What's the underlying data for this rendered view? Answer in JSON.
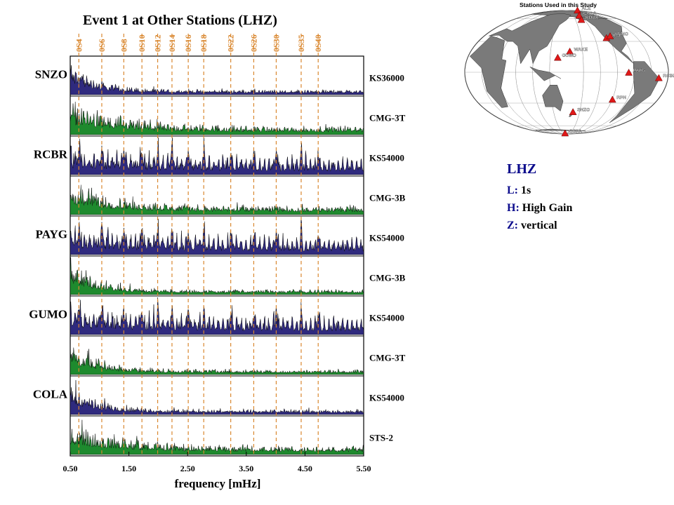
{
  "chart_data": {
    "type": "area",
    "title": "Event 1 at Other Stations (LHZ)",
    "xlabel": "frequency [mHz]",
    "xlim": [
      0.5,
      5.5
    ],
    "x_ticks": [
      "0.50",
      "1.50",
      "2.50",
      "3.50",
      "4.50",
      "5.50"
    ],
    "mode_labels": [
      "0S4",
      "0S6",
      "0S8",
      "0S10",
      "0S12",
      "0S14",
      "0S16",
      "0S18",
      "0S22",
      "0S26",
      "0S30",
      "0S35",
      "0S40"
    ],
    "mode_freqs": [
      0.647,
      1.038,
      1.413,
      1.722,
      1.99,
      2.234,
      2.511,
      2.775,
      3.235,
      3.627,
      4.01,
      4.435,
      4.725
    ],
    "stations": [
      {
        "name": "SNZO",
        "traces": [
          {
            "instrument": "KS36000",
            "color": "#2f2a7e",
            "profile": "low"
          },
          {
            "instrument": "CMG-3T",
            "color": "#1e8a2e",
            "profile": "mid"
          }
        ]
      },
      {
        "name": "RCBR",
        "traces": [
          {
            "instrument": "KS54000",
            "color": "#2f2a7e",
            "profile": "peaky"
          },
          {
            "instrument": "CMG-3B",
            "color": "#1e8a2e",
            "profile": "mid"
          }
        ]
      },
      {
        "name": "PAYG",
        "traces": [
          {
            "instrument": "KS54000",
            "color": "#2f2a7e",
            "profile": "peaky"
          },
          {
            "instrument": "CMG-3B",
            "color": "#1e8a2e",
            "profile": "low"
          }
        ]
      },
      {
        "name": "GUMO",
        "traces": [
          {
            "instrument": "KS54000",
            "color": "#2f2a7e",
            "profile": "peaky"
          },
          {
            "instrument": "CMG-3T",
            "color": "#1e8a2e",
            "profile": "low"
          }
        ]
      },
      {
        "name": "COLA",
        "traces": [
          {
            "instrument": "KS54000",
            "color": "#2f2a7e",
            "profile": "low"
          },
          {
            "instrument": "STS-2",
            "color": "#1e8a2e",
            "profile": "mid"
          }
        ]
      }
    ],
    "mode_line_color": "#d9872f"
  },
  "map": {
    "title": "Stations Used in this Study",
    "stations": [
      {
        "name": "ALE",
        "lon": -62,
        "lat": 82
      },
      {
        "name": "COLA",
        "lon": -147,
        "lat": 65
      },
      {
        "name": "KDAK",
        "lon": -152,
        "lat": 57
      },
      {
        "name": "PFO",
        "lon": -116,
        "lat": 33
      },
      {
        "name": "ANMO",
        "lon": -106,
        "lat": 35
      },
      {
        "name": "WAKE",
        "lon": 166,
        "lat": 19
      },
      {
        "name": "GUMO",
        "lon": 144,
        "lat": 13
      },
      {
        "name": "PAYG",
        "lon": -90,
        "lat": -1
      },
      {
        "name": "RCBR",
        "lon": -36,
        "lat": -6
      },
      {
        "name": "SNZO",
        "lon": 175,
        "lat": -41
      },
      {
        "name": "RPN",
        "lon": -109,
        "lat": -27
      },
      {
        "name": "QSPA",
        "lon": 0,
        "lat": -89
      }
    ],
    "marker_color": "#e01818"
  },
  "legend": {
    "heading": "LHZ",
    "items": [
      {
        "key": "L:",
        "value": "1s"
      },
      {
        "key": "H:",
        "value": "High Gain"
      },
      {
        "key": "Z:",
        "value": "vertical"
      }
    ]
  }
}
